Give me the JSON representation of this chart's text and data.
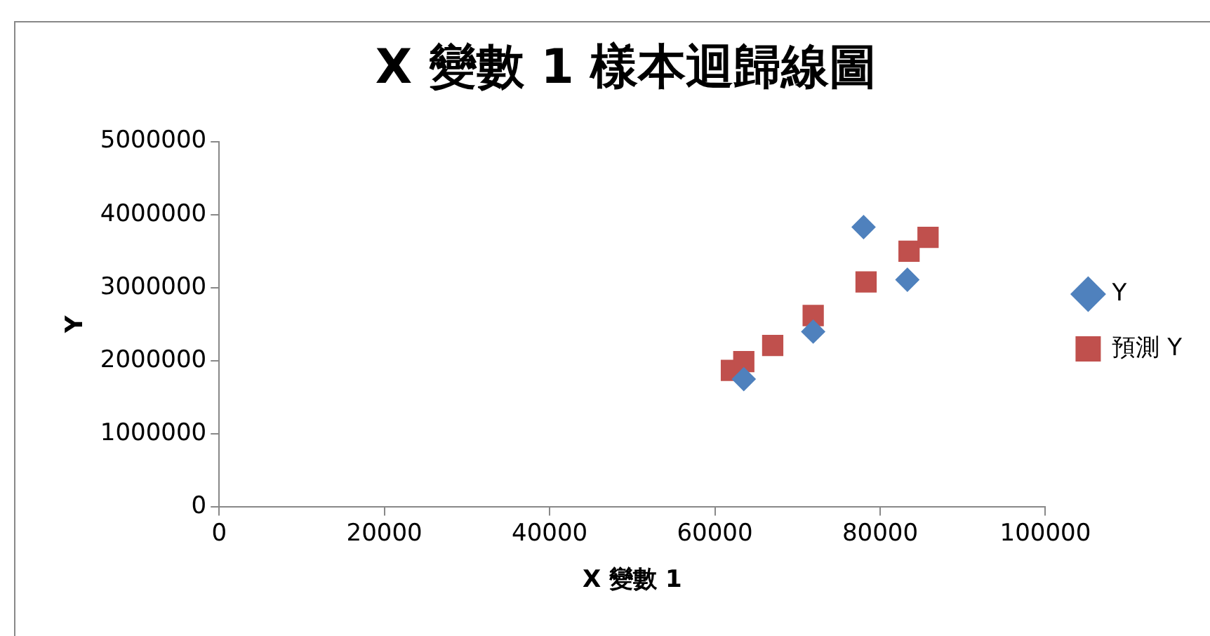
{
  "chart_data": {
    "type": "scatter",
    "title": "X 變數 1 樣本迴歸線圖",
    "xlabel": "X 變數 1",
    "ylabel": "Y",
    "xlim": [
      0,
      100000
    ],
    "xticks": [
      0,
      20000,
      40000,
      60000,
      80000,
      100000
    ],
    "ylim": [
      0,
      5000000
    ],
    "yticks": [
      0,
      1000000,
      2000000,
      3000000,
      4000000,
      5000000
    ],
    "grid": false,
    "legend": "right",
    "series": [
      {
        "name": "Y",
        "color": "#4f81bd",
        "marker": "diamond",
        "x": [
          63500,
          71900,
          78000,
          83300
        ],
        "values": [
          1750000,
          2400000,
          3830000,
          3110000
        ]
      },
      {
        "name": "預測 Y",
        "color": "#c0504d",
        "marker": "square",
        "x": [
          62000,
          63500,
          67000,
          71900,
          78300,
          83500,
          85800
        ],
        "values": [
          1870000,
          1990000,
          2210000,
          2620000,
          3080000,
          3500000,
          3690000
        ]
      }
    ]
  }
}
